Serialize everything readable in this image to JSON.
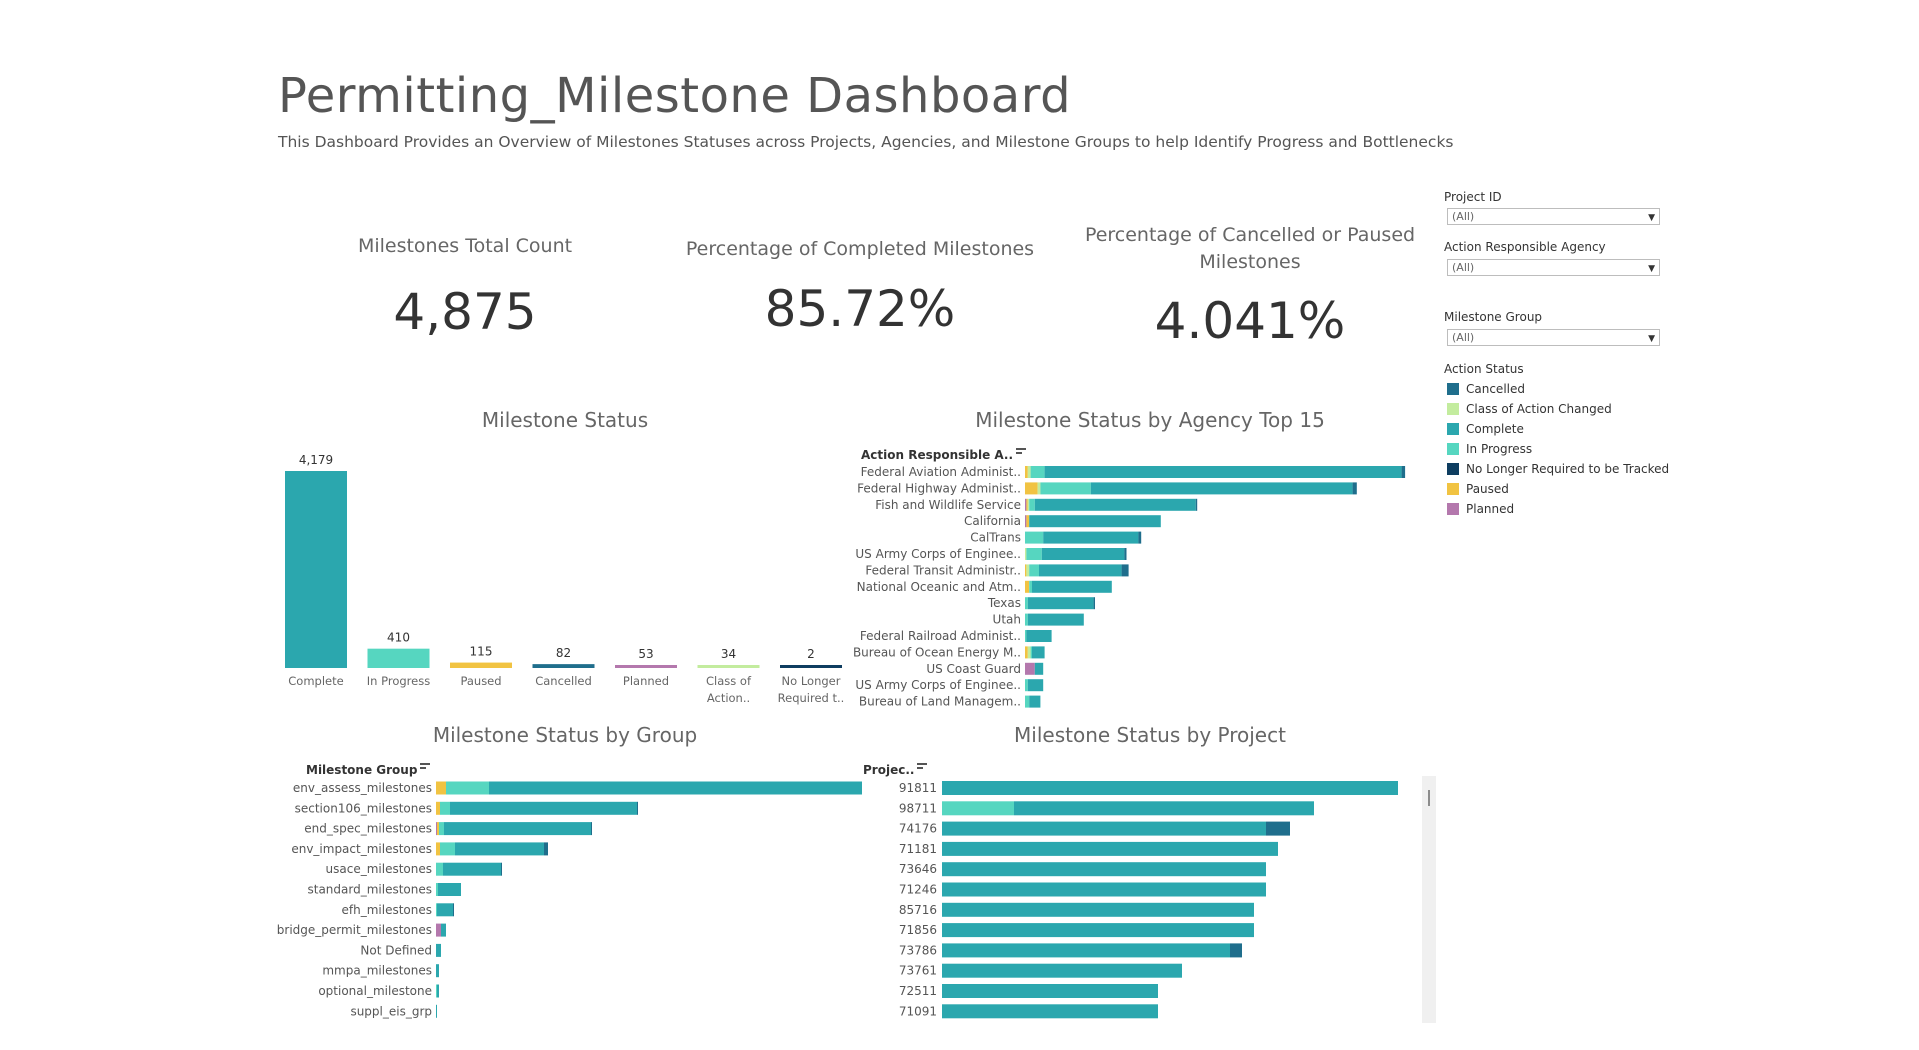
{
  "header": {
    "title": "Permitting_Milestone Dashboard",
    "subtitle": "This Dashboard Provides an Overview of Milestones Statuses across Projects, Agencies, and Milestone Groups to help Identify Progress and Bottlenecks"
  },
  "kpis": {
    "total": {
      "label": "Milestones Total Count",
      "value": "4,875"
    },
    "completed": {
      "label": "Percentage of Completed Milestones",
      "value": "85.72%"
    },
    "cancelled": {
      "label": "Percentage of Cancelled or Paused Milestones",
      "value": "4.041%"
    }
  },
  "filters": {
    "project": {
      "label": "Project ID",
      "value": "(All)"
    },
    "agency": {
      "label": "Action Responsible Agency",
      "value": "(All)"
    },
    "group": {
      "label": "Milestone Group",
      "value": "(All)"
    }
  },
  "legend": {
    "title": "Action Status",
    "items": [
      {
        "label": "Cancelled",
        "color": "#1f6e8c"
      },
      {
        "label": "Class of Action Changed",
        "color": "#c3ec9e"
      },
      {
        "label": "Complete",
        "color": "#2ba7ae"
      },
      {
        "label": "In Progress",
        "color": "#56d6c0"
      },
      {
        "label": "No Longer Required to be Tracked",
        "color": "#0e3d60"
      },
      {
        "label": "Paused",
        "color": "#f1c342"
      },
      {
        "label": "Planned",
        "color": "#b478ad"
      }
    ]
  },
  "colors": {
    "Cancelled": "#1f6e8c",
    "ClassChanged": "#c3ec9e",
    "Complete": "#2ba7ae",
    "InProgress": "#56d6c0",
    "NoLonger": "#0e3d60",
    "Paused": "#f1c342",
    "Planned": "#b478ad"
  },
  "status_chart": {
    "title": "Milestone Status",
    "chart_data": {
      "type": "bar",
      "categories": [
        "Complete",
        "In Progress",
        "Paused",
        "Cancelled",
        "Planned",
        "Class of Action..",
        "No Longer Required t.."
      ],
      "tick_lines": [
        [
          "Complete"
        ],
        [
          "In Progress"
        ],
        [
          "Paused"
        ],
        [
          "Cancelled"
        ],
        [
          "Planned"
        ],
        [
          "Class of",
          "Action.."
        ],
        [
          "No Longer",
          "Required t.."
        ]
      ],
      "values": [
        4179,
        410,
        115,
        82,
        53,
        34,
        2
      ],
      "value_labels": [
        "4,179",
        "410",
        "115",
        "82",
        "53",
        "34",
        "2"
      ],
      "color_keys": [
        "Complete",
        "InProgress",
        "Paused",
        "Cancelled",
        "Planned",
        "ClassChanged",
        "NoLonger"
      ]
    }
  },
  "agency_chart": {
    "title": "Milestone Status by Agency Top 15",
    "axis_header": "Action Responsible A..",
    "chart_data": {
      "type": "bar",
      "stack_order": [
        "Planned",
        "Paused",
        "ClassChanged",
        "InProgress",
        "Complete",
        "Cancelled",
        "NoLonger"
      ],
      "rows": [
        {
          "label": "Federal Aviation Administ..",
          "Planned": 0,
          "Paused": 4,
          "ClassChanged": 4,
          "InProgress": 20,
          "Complete": 510,
          "Cancelled": 5,
          "NoLonger": 0
        },
        {
          "label": "Federal Highway Administ..",
          "Planned": 0,
          "Paused": 18,
          "ClassChanged": 4,
          "InProgress": 72,
          "Complete": 374,
          "Cancelled": 6,
          "NoLonger": 0
        },
        {
          "label": "Fish and Wildlife Service",
          "Planned": 2,
          "Paused": 2,
          "ClassChanged": 2,
          "InProgress": 8,
          "Complete": 230,
          "Cancelled": 2,
          "NoLonger": 0
        },
        {
          "label": "California",
          "Planned": 2,
          "Paused": 4,
          "ClassChanged": 0,
          "InProgress": 0,
          "Complete": 188,
          "Cancelled": 0,
          "NoLonger": 0
        },
        {
          "label": "CalTrans",
          "Planned": 0,
          "Paused": 0,
          "ClassChanged": 0,
          "InProgress": 26,
          "Complete": 136,
          "Cancelled": 4,
          "NoLonger": 0
        },
        {
          "label": "US Army Corps of Enginee..",
          "Planned": 0,
          "Paused": 0,
          "ClassChanged": 2,
          "InProgress": 22,
          "Complete": 118,
          "Cancelled": 3,
          "NoLonger": 0
        },
        {
          "label": "Federal Transit Administr..",
          "Planned": 0,
          "Paused": 2,
          "ClassChanged": 4,
          "InProgress": 14,
          "Complete": 118,
          "Cancelled": 10,
          "NoLonger": 0
        },
        {
          "label": "National Oceanic and Atm..",
          "Planned": 0,
          "Paused": 6,
          "ClassChanged": 0,
          "InProgress": 4,
          "Complete": 114,
          "Cancelled": 0,
          "NoLonger": 0
        },
        {
          "label": "Texas",
          "Planned": 0,
          "Paused": 0,
          "ClassChanged": 0,
          "InProgress": 4,
          "Complete": 94,
          "Cancelled": 2,
          "NoLonger": 0
        },
        {
          "label": "Utah",
          "Planned": 0,
          "Paused": 0,
          "ClassChanged": 0,
          "InProgress": 4,
          "Complete": 80,
          "Cancelled": 0,
          "NoLonger": 0
        },
        {
          "label": "Federal Railroad Administ..",
          "Planned": 0,
          "Paused": 0,
          "ClassChanged": 0,
          "InProgress": 2,
          "Complete": 36,
          "Cancelled": 0,
          "NoLonger": 0
        },
        {
          "label": "Bureau of Ocean Energy M..",
          "Planned": 0,
          "Paused": 4,
          "ClassChanged": 4,
          "InProgress": 2,
          "Complete": 18,
          "Cancelled": 0,
          "NoLonger": 0
        },
        {
          "label": "US Coast Guard",
          "Planned": 14,
          "Paused": 0,
          "ClassChanged": 0,
          "InProgress": 0,
          "Complete": 12,
          "Cancelled": 0,
          "NoLonger": 0
        },
        {
          "label": "US Army Corps of Enginee..",
          "Planned": 0,
          "Paused": 0,
          "ClassChanged": 0,
          "InProgress": 4,
          "Complete": 22,
          "Cancelled": 0,
          "NoLonger": 0
        },
        {
          "label": "Bureau of Land Managem..",
          "Planned": 0,
          "Paused": 0,
          "ClassChanged": 0,
          "InProgress": 6,
          "Complete": 16,
          "Cancelled": 0,
          "NoLonger": 0
        }
      ]
    }
  },
  "group_chart": {
    "title": "Milestone Status by Group",
    "axis_header": "Milestone Group",
    "chart_data": {
      "type": "bar",
      "stack_order": [
        "Planned",
        "Paused",
        "ClassChanged",
        "InProgress",
        "Complete",
        "Cancelled",
        "NoLonger"
      ],
      "rows": [
        {
          "label": "env_assess_milestones",
          "Planned": 0,
          "Paused": 20,
          "ClassChanged": 0,
          "InProgress": 86,
          "Complete": 768,
          "Cancelled": 4,
          "NoLonger": 0
        },
        {
          "label": "section106_milestones",
          "Planned": 0,
          "Paused": 8,
          "ClassChanged": 0,
          "InProgress": 20,
          "Complete": 374,
          "Cancelled": 2,
          "NoLonger": 0
        },
        {
          "label": "end_spec_milestones",
          "Planned": 2,
          "Paused": 4,
          "ClassChanged": 0,
          "InProgress": 10,
          "Complete": 294,
          "Cancelled": 2,
          "NoLonger": 0
        },
        {
          "label": "env_impact_milestones",
          "Planned": 0,
          "Paused": 8,
          "ClassChanged": 0,
          "InProgress": 30,
          "Complete": 178,
          "Cancelled": 8,
          "NoLonger": 0
        },
        {
          "label": "usace_milestones",
          "Planned": 0,
          "Paused": 0,
          "ClassChanged": 0,
          "InProgress": 14,
          "Complete": 116,
          "Cancelled": 2,
          "NoLonger": 0
        },
        {
          "label": "standard_milestones",
          "Planned": 0,
          "Paused": 0,
          "ClassChanged": 0,
          "InProgress": 4,
          "Complete": 46,
          "Cancelled": 0,
          "NoLonger": 0
        },
        {
          "label": "efh_milestones",
          "Planned": 0,
          "Paused": 0,
          "ClassChanged": 0,
          "InProgress": 2,
          "Complete": 32,
          "Cancelled": 2,
          "NoLonger": 0
        },
        {
          "label": "bridge_permit_milestones",
          "Planned": 10,
          "Paused": 0,
          "ClassChanged": 0,
          "InProgress": 0,
          "Complete": 10,
          "Cancelled": 0,
          "NoLonger": 0
        },
        {
          "label": "Not Defined",
          "Planned": 0,
          "Paused": 0,
          "ClassChanged": 0,
          "InProgress": 0,
          "Complete": 10,
          "Cancelled": 0,
          "NoLonger": 0
        },
        {
          "label": "mmpa_milestones",
          "Planned": 0,
          "Paused": 0,
          "ClassChanged": 0,
          "InProgress": 0,
          "Complete": 6,
          "Cancelled": 0,
          "NoLonger": 0
        },
        {
          "label": "optional_milestone",
          "Planned": 0,
          "Paused": 0,
          "ClassChanged": 0,
          "InProgress": 2,
          "Complete": 4,
          "Cancelled": 0,
          "NoLonger": 0
        },
        {
          "label": "suppl_eis_grp",
          "Planned": 0,
          "Paused": 0,
          "ClassChanged": 0,
          "InProgress": 0,
          "Complete": 2,
          "Cancelled": 0,
          "NoLonger": 0
        }
      ]
    }
  },
  "project_chart": {
    "title": "Milestone Status by Project",
    "axis_header": "Projec..",
    "chart_data": {
      "type": "bar",
      "stack_order": [
        "Planned",
        "Paused",
        "ClassChanged",
        "InProgress",
        "Complete",
        "Cancelled",
        "NoLonger"
      ],
      "rows": [
        {
          "label": "91811",
          "Planned": 0,
          "Paused": 0,
          "ClassChanged": 0,
          "InProgress": 0,
          "Complete": 76,
          "Cancelled": 0,
          "NoLonger": 0
        },
        {
          "label": "98711",
          "Planned": 0,
          "Paused": 0,
          "ClassChanged": 0,
          "InProgress": 12,
          "Complete": 50,
          "Cancelled": 0,
          "NoLonger": 0
        },
        {
          "label": "74176",
          "Planned": 0,
          "Paused": 0,
          "ClassChanged": 0,
          "InProgress": 0,
          "Complete": 54,
          "Cancelled": 4,
          "NoLonger": 0
        },
        {
          "label": "71181",
          "Planned": 0,
          "Paused": 0,
          "ClassChanged": 0,
          "InProgress": 0,
          "Complete": 56,
          "Cancelled": 0,
          "NoLonger": 0
        },
        {
          "label": "73646",
          "Planned": 0,
          "Paused": 0,
          "ClassChanged": 0,
          "InProgress": 0,
          "Complete": 54,
          "Cancelled": 0,
          "NoLonger": 0
        },
        {
          "label": "71246",
          "Planned": 0,
          "Paused": 0,
          "ClassChanged": 0,
          "InProgress": 0,
          "Complete": 54,
          "Cancelled": 0,
          "NoLonger": 0
        },
        {
          "label": "85716",
          "Planned": 0,
          "Paused": 0,
          "ClassChanged": 0,
          "InProgress": 0,
          "Complete": 52,
          "Cancelled": 0,
          "NoLonger": 0
        },
        {
          "label": "71856",
          "Planned": 0,
          "Paused": 0,
          "ClassChanged": 0,
          "InProgress": 0,
          "Complete": 52,
          "Cancelled": 0,
          "NoLonger": 0
        },
        {
          "label": "73786",
          "Planned": 0,
          "Paused": 0,
          "ClassChanged": 0,
          "InProgress": 0,
          "Complete": 48,
          "Cancelled": 2,
          "NoLonger": 0
        },
        {
          "label": "73761",
          "Planned": 0,
          "Paused": 0,
          "ClassChanged": 0,
          "InProgress": 0,
          "Complete": 40,
          "Cancelled": 0,
          "NoLonger": 0
        },
        {
          "label": "72511",
          "Planned": 0,
          "Paused": 0,
          "ClassChanged": 0,
          "InProgress": 0,
          "Complete": 36,
          "Cancelled": 0,
          "NoLonger": 0
        },
        {
          "label": "71091",
          "Planned": 0,
          "Paused": 0,
          "ClassChanged": 0,
          "InProgress": 0,
          "Complete": 36,
          "Cancelled": 0,
          "NoLonger": 0
        }
      ]
    }
  }
}
